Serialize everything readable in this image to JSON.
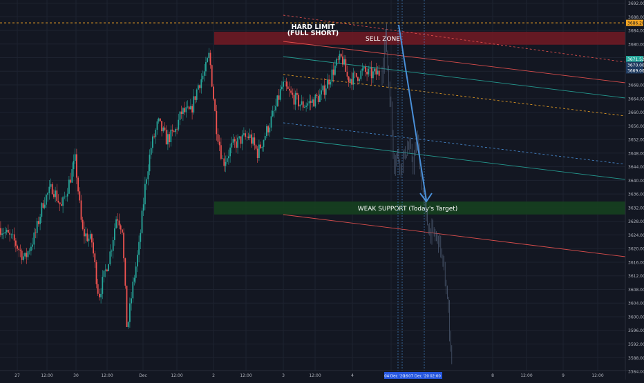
{
  "chart_data": {
    "type": "candlestick",
    "symbol_last_price": "3686.20",
    "price_badges": [
      "3671.52",
      "3670.00",
      "3669.00"
    ],
    "y_ticks": [
      3584,
      3588,
      3592,
      3596,
      3600,
      3604,
      3608,
      3612,
      3616,
      3620,
      3624,
      3628,
      3632,
      3636,
      3640,
      3644,
      3648,
      3652,
      3656,
      3660,
      3664,
      3668,
      3672,
      3676,
      3680,
      3684,
      3688,
      3692
    ],
    "ylim": [
      3583.5,
      3693.3
    ],
    "x_ticks": [
      "27",
      "12:00",
      "30",
      "12:00",
      "Dec",
      "12:00",
      "2",
      "12:00",
      "3",
      "12:00",
      "4",
      "12:00",
      "8",
      "12:00",
      "9",
      "12:00"
    ],
    "x_highlight_labels": [
      "04 Dec '20",
      "16",
      "07 Dec '20",
      "02:00"
    ],
    "zones": [
      {
        "name": "sell-zone",
        "label": "SELL ZONE",
        "price_top": 3683.6,
        "price_bottom": 3679.8,
        "color": "#6e1a24"
      },
      {
        "name": "weak-support",
        "label": "WEAK SUPPORT (Today's Target)",
        "price_top": 3633.8,
        "price_bottom": 3630.0,
        "color": "#16401f"
      }
    ],
    "annotations": [
      {
        "name": "hard-limit",
        "line1": "HARD LIMIT",
        "line2": "(FULL SHORT)"
      }
    ],
    "colors": {
      "up": "#26a69a",
      "down": "#ef5350",
      "bg": "#131722",
      "projection": "#5b6b85",
      "arrow": "#4a90d9",
      "grid": "#1e2330"
    },
    "actual_series_stats": {
      "start_price": 3626.0,
      "low": 3594.0,
      "high": 3681.5
    },
    "projection_low": 3586.0
  }
}
